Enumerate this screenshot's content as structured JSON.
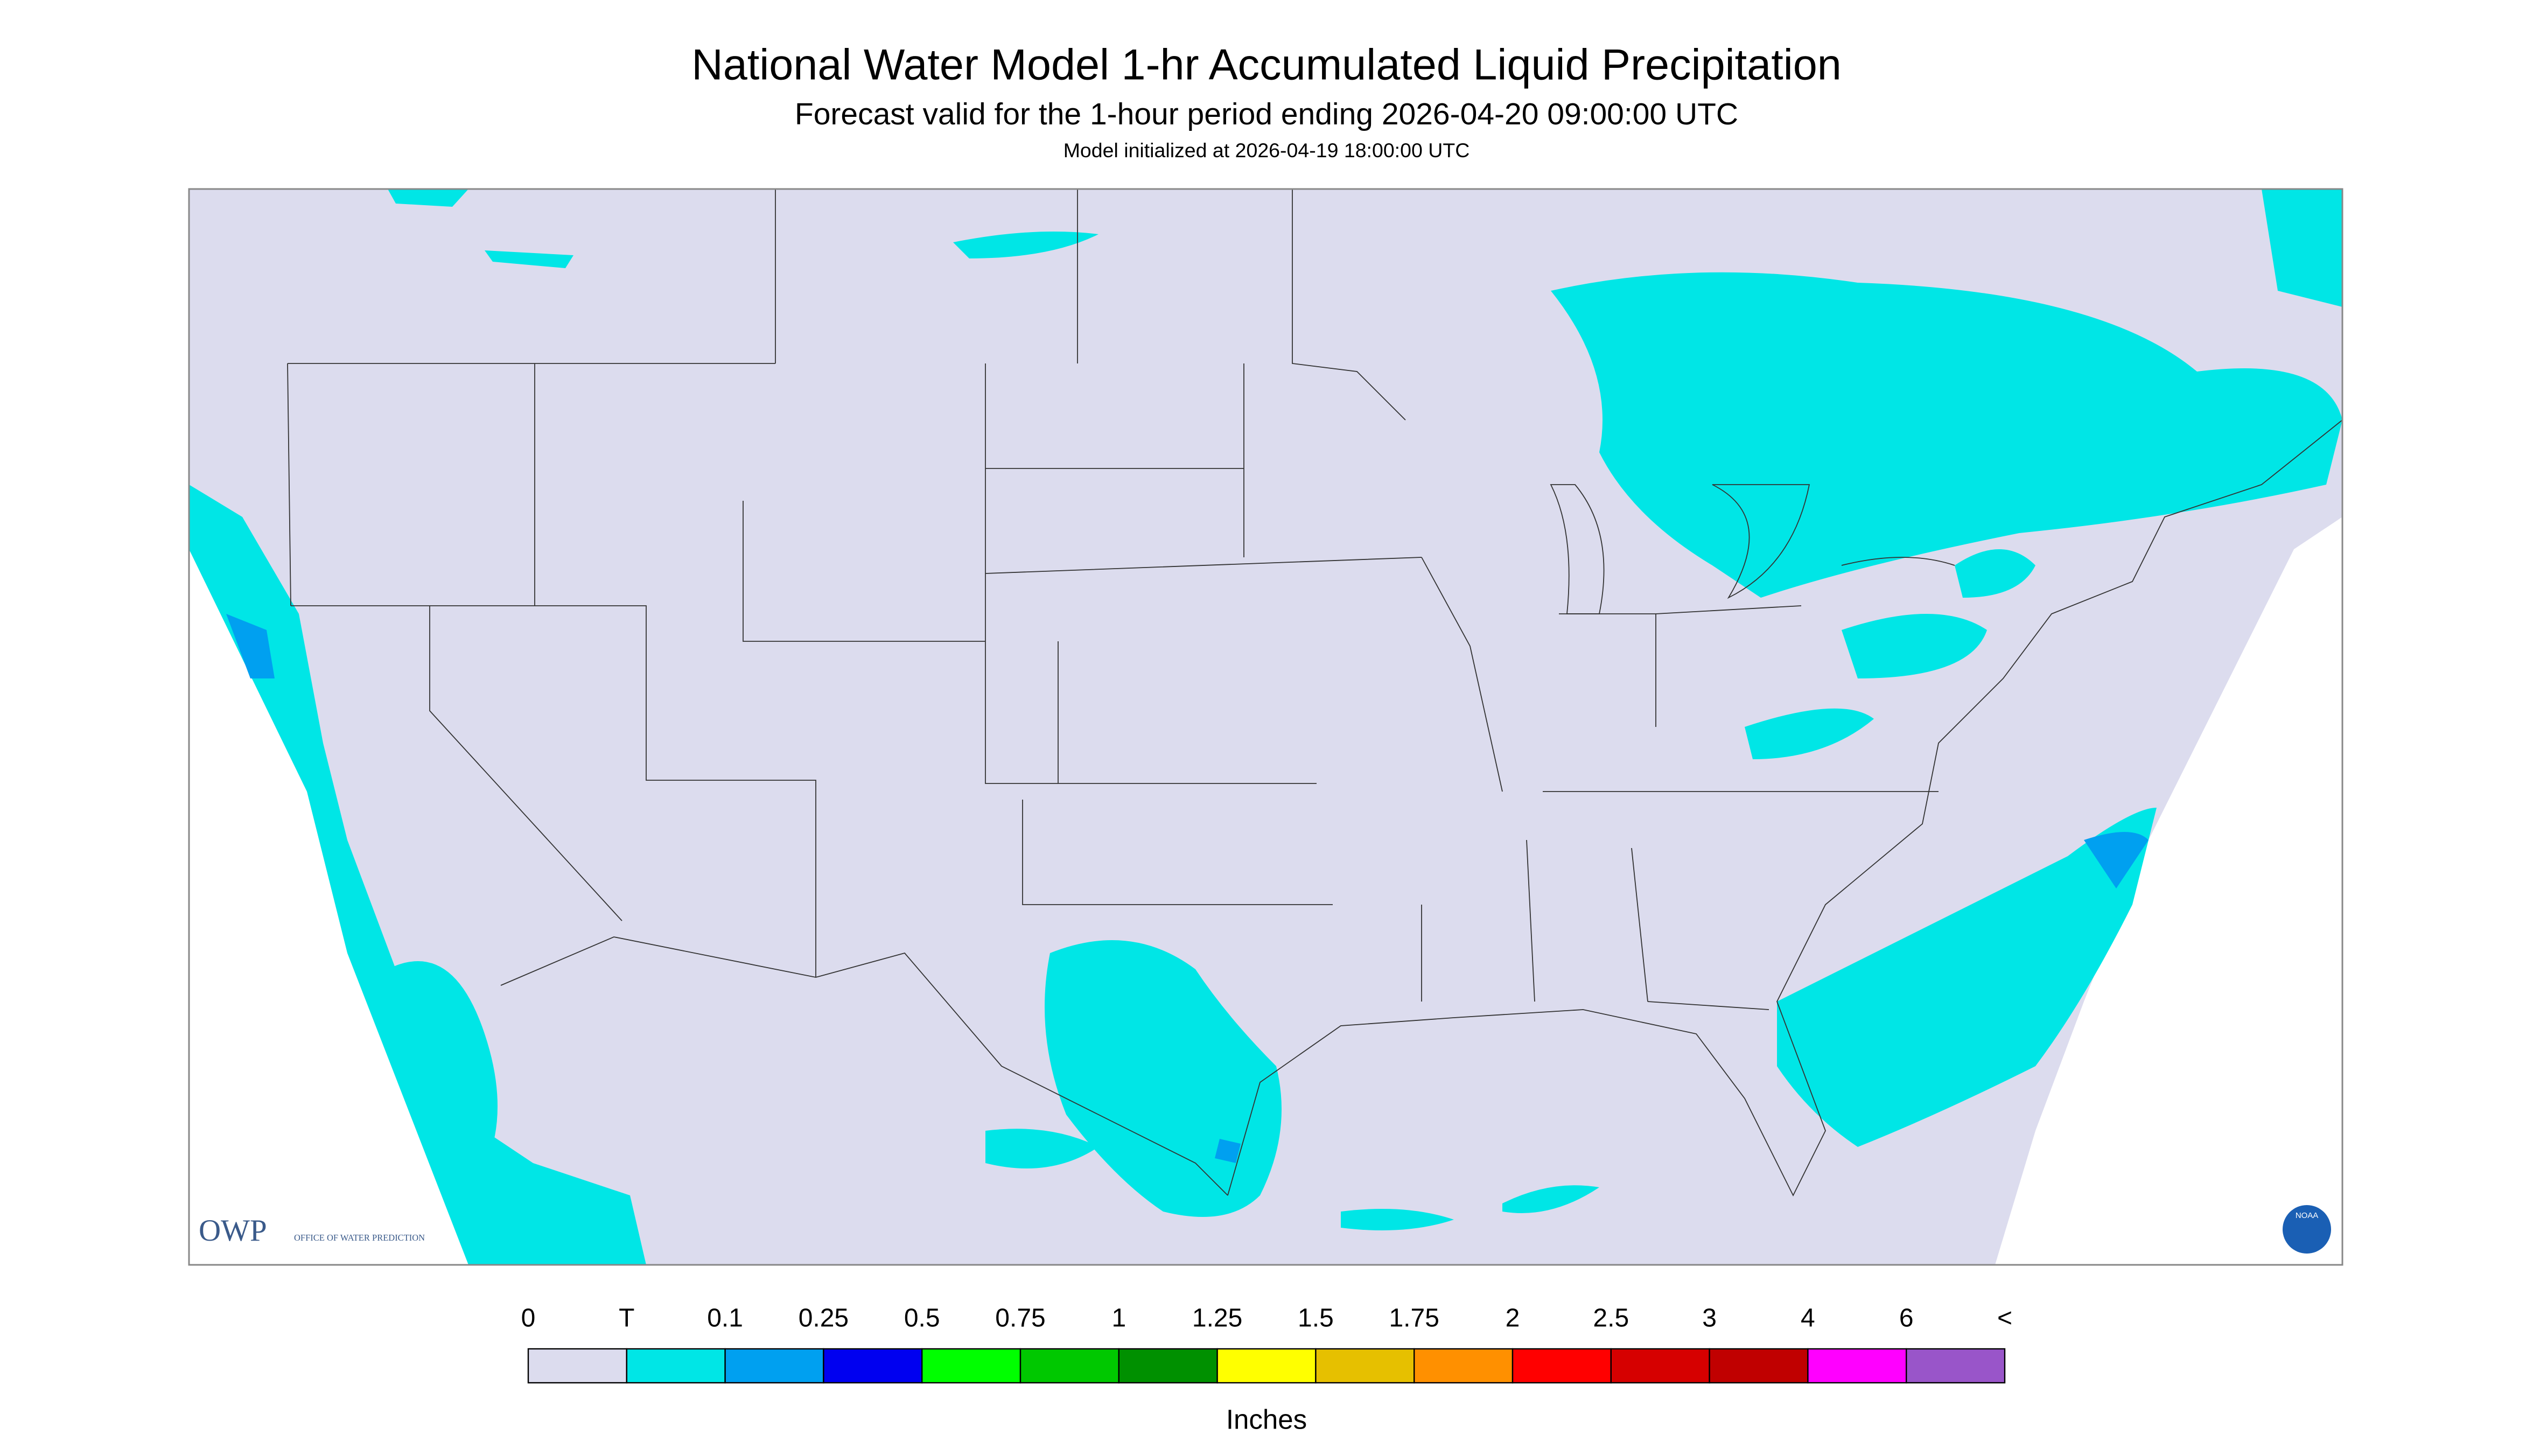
{
  "header": {
    "title": "National Water Model 1-hr Accumulated Liquid Precipitation",
    "subtitle": "Forecast valid for the 1-hour period ending 2026-04-20 09:00:00 UTC",
    "note": "Model initialized at 2026-04-19 18:00:00 UTC"
  },
  "logos": {
    "owp": "OWP",
    "owp_text": "OFFICE OF WATER PREDICTION",
    "noaa": "NOAA"
  },
  "legend": {
    "labels": [
      "0",
      "T",
      "0.1",
      "0.25",
      "0.5",
      "0.75",
      "1",
      "1.25",
      "1.5",
      "1.75",
      "2",
      "2.5",
      "3",
      "4",
      "6",
      "<"
    ],
    "colors": [
      "#dcdcee",
      "#00e6e6",
      "#00a0f0",
      "#0000f0",
      "#00ff00",
      "#00c800",
      "#009000",
      "#ffff00",
      "#e6c000",
      "#ff9000",
      "#ff0000",
      "#d60000",
      "#c00000",
      "#ff00ff",
      "#9955c9"
    ],
    "unit": "Inches"
  }
}
